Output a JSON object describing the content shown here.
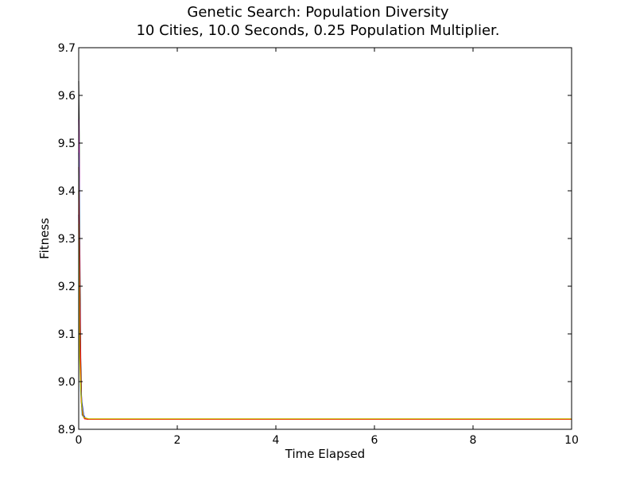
{
  "chart_data": {
    "type": "line",
    "title": "Genetic Search: Population Diversity",
    "subtitle": "10 Cities, 10.0 Seconds, 0.25 Population Multiplier.",
    "xlabel": "Time Elapsed",
    "ylabel": "Fitness",
    "xlim": [
      0,
      10
    ],
    "ylim": [
      8.9,
      9.7
    ],
    "xticks": [
      0,
      2,
      4,
      6,
      8,
      10
    ],
    "yticks": [
      8.9,
      9.0,
      9.1,
      9.2,
      9.3,
      9.4,
      9.5,
      9.6,
      9.7
    ],
    "grid": false,
    "series": [
      {
        "color": "#000000",
        "x": [
          0,
          0.01,
          0.02,
          0.04,
          0.06,
          0.1,
          0.2,
          10
        ],
        "y": [
          9.63,
          9.52,
          9.3,
          9.05,
          8.95,
          8.925,
          8.921,
          8.921
        ]
      },
      {
        "color": "#ff00ff",
        "x": [
          0,
          0.01,
          0.02,
          0.04,
          0.07,
          0.1,
          0.2,
          10
        ],
        "y": [
          9.55,
          9.45,
          9.2,
          9.0,
          8.94,
          8.925,
          8.921,
          8.921
        ]
      },
      {
        "color": "#00bfbf",
        "x": [
          0,
          0.01,
          0.02,
          0.04,
          0.07,
          0.12,
          0.2,
          10
        ],
        "y": [
          9.48,
          9.4,
          9.15,
          8.98,
          8.93,
          8.923,
          8.921,
          8.921
        ]
      },
      {
        "color": "#0000ff",
        "x": [
          0,
          0.02,
          0.04,
          0.06,
          0.1,
          0.14,
          0.2,
          10
        ],
        "y": [
          9.35,
          9.1,
          9.0,
          8.96,
          8.93,
          8.922,
          8.921,
          8.921
        ]
      },
      {
        "color": "#008000",
        "x": [
          0,
          0.01,
          0.03,
          0.05,
          0.08,
          0.12,
          0.2,
          10
        ],
        "y": [
          9.4,
          9.25,
          9.05,
          8.97,
          8.93,
          8.923,
          8.921,
          8.921
        ]
      },
      {
        "color": "#ff0000",
        "x": [
          0,
          0.01,
          0.03,
          0.05,
          0.08,
          0.12,
          0.2,
          10
        ],
        "y": [
          9.45,
          9.3,
          9.08,
          8.96,
          8.93,
          8.922,
          8.921,
          8.921
        ]
      },
      {
        "color": "#bfbf00",
        "x": [
          0,
          0.01,
          0.02,
          0.04,
          0.06,
          0.1,
          0.2,
          10
        ],
        "y": [
          9.33,
          9.2,
          9.05,
          8.99,
          8.95,
          8.925,
          8.922,
          8.922
        ]
      }
    ]
  }
}
